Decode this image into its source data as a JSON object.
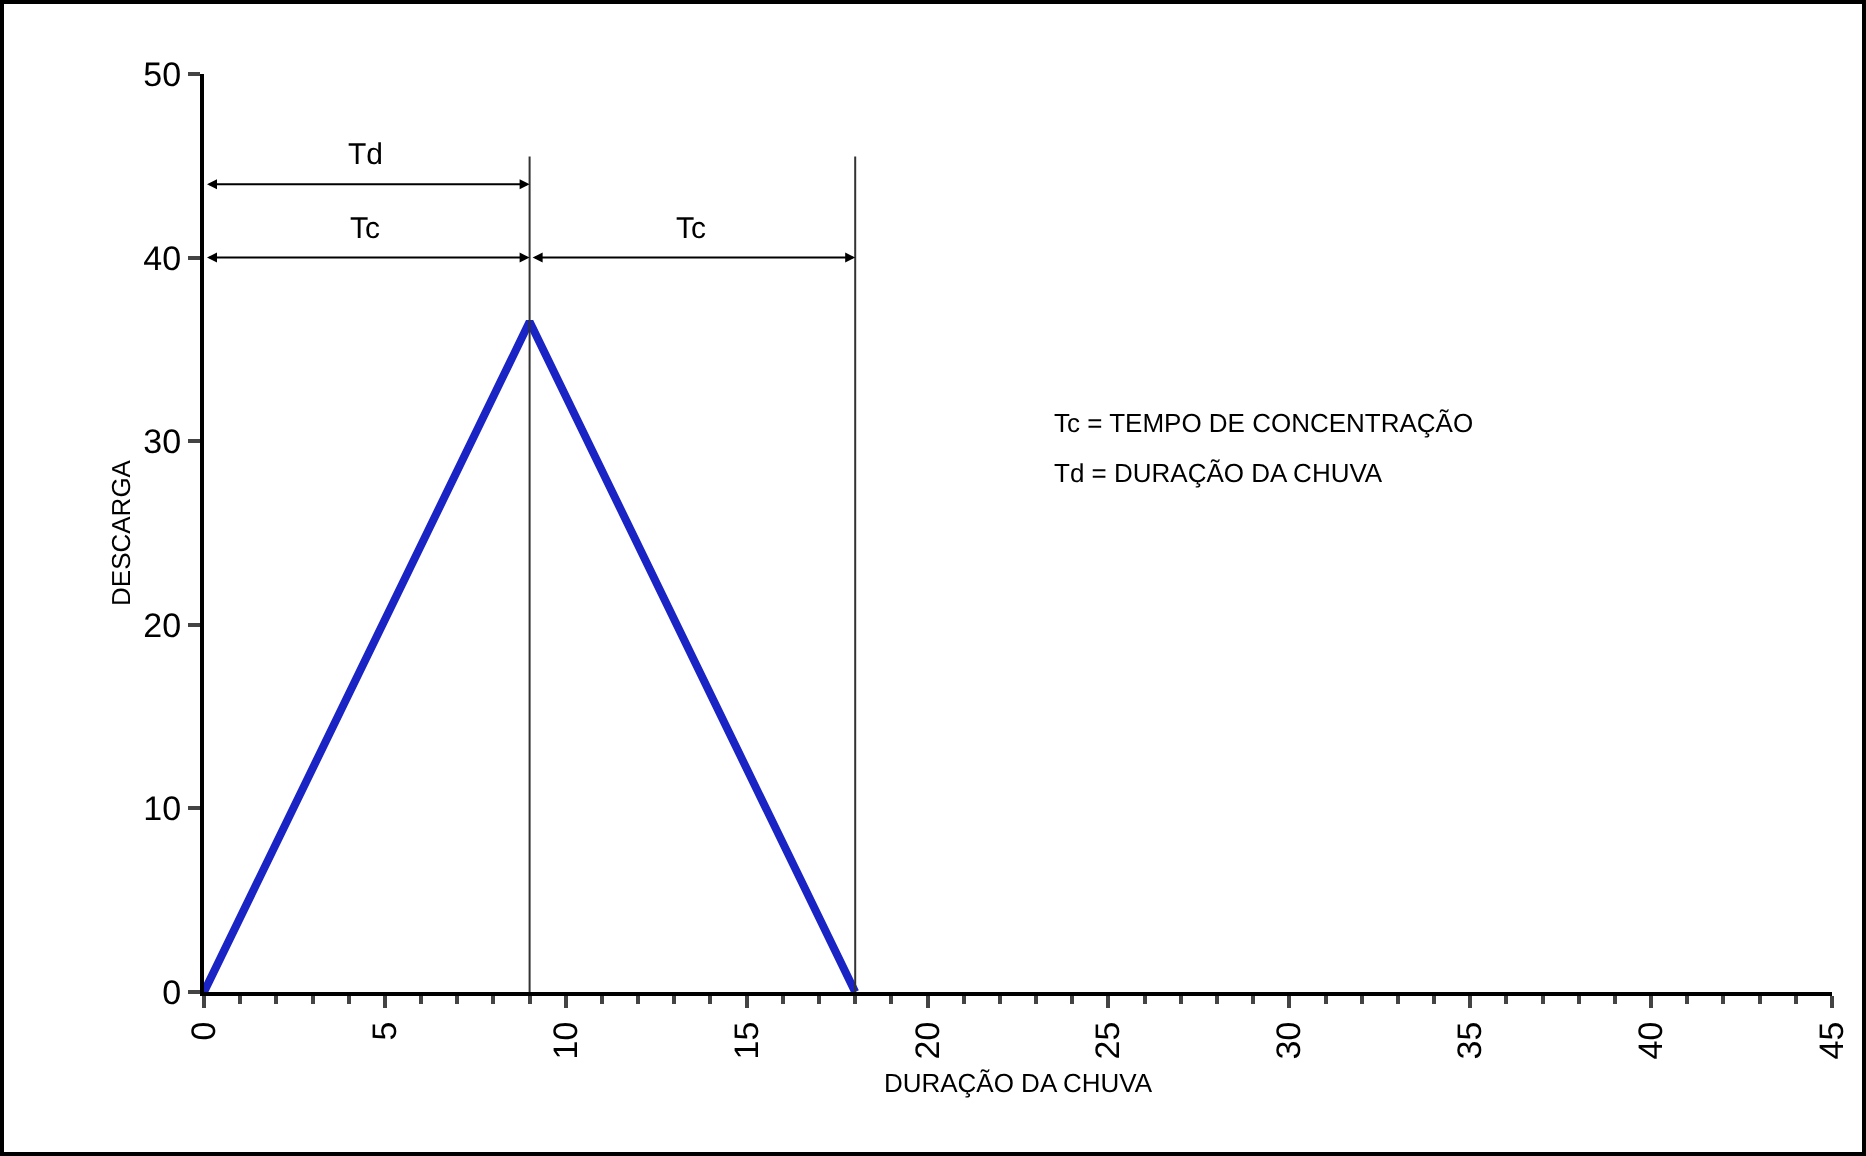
{
  "chart_data": {
    "type": "line",
    "xlabel": "DURAÇÃO DA CHUVA",
    "ylabel": "DESCARGA",
    "x": [
      0,
      9,
      18
    ],
    "series": [
      {
        "color": "#1a24c4",
        "values": [
          0,
          36.5,
          0
        ]
      }
    ],
    "xlim": [
      0,
      45
    ],
    "xticks": [
      0,
      5,
      10,
      15,
      20,
      25,
      30,
      35,
      40,
      45
    ],
    "ylim": [
      0,
      50
    ],
    "yticks": [
      0,
      10,
      20,
      30,
      40,
      50
    ],
    "grid": false,
    "marker": "none",
    "line_style": "solid",
    "ref_lines": [
      {
        "axis": "x",
        "value": 9,
        "label": null
      },
      {
        "axis": "x",
        "value": 18,
        "label": null
      }
    ],
    "annotations": [
      "Td",
      "Tc",
      "Tc",
      "Tc = TEMPO DE CONCENTRAÇÃO",
      "Td = DURAÇÃO DA CHUVA"
    ]
  }
}
